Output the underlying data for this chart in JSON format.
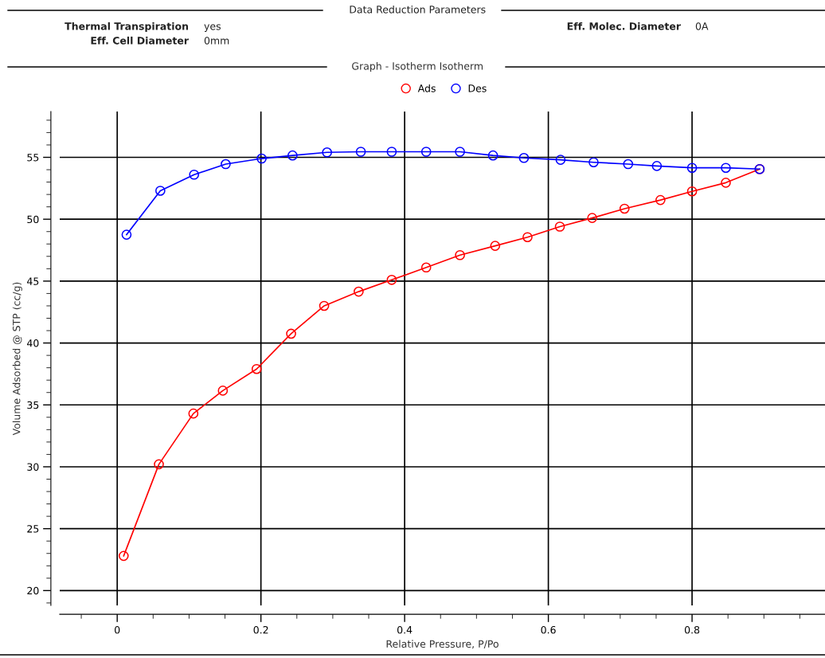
{
  "chart_data": {
    "type": "line",
    "title": "Graph - Isotherm Isotherm",
    "xlabel": "Relative Pressure, P/Po",
    "ylabel": "Volume Adsorbed @ STP (cc/g)",
    "annotations": [
      "Data Reduction Parameters",
      "Thermal Transpiration",
      "yes",
      "Eff. Cell Diameter",
      "0mm",
      "Eff. Molec. Diameter",
      "0A"
    ],
    "xlim": [
      -0.08,
      0.985
    ],
    "xticks": [
      0,
      0.2,
      0.4,
      0.6,
      0.8
    ],
    "ylim": [
      18.8,
      58.7
    ],
    "yticks": [
      20,
      25,
      30,
      35,
      40,
      45,
      50,
      55
    ],
    "grid": true,
    "legend": "top",
    "marker": "circle",
    "line_style": "solid",
    "series": [
      {
        "name": "Ads",
        "color": "#ff0000",
        "x": [
          0.009,
          0.058,
          0.106,
          0.147,
          0.194,
          0.242,
          0.288,
          0.336,
          0.382,
          0.43,
          0.477,
          0.526,
          0.571,
          0.616,
          0.661,
          0.706,
          0.756,
          0.8,
          0.847,
          0.894
        ],
        "values": [
          22.8,
          30.2,
          34.3,
          36.15,
          37.9,
          40.75,
          43.0,
          44.15,
          45.1,
          46.1,
          47.1,
          47.85,
          48.55,
          49.4,
          50.1,
          50.85,
          51.55,
          52.25,
          52.95,
          54.05
        ]
      },
      {
        "name": "Des",
        "color": "#0000ff",
        "x": [
          0.013,
          0.06,
          0.107,
          0.151,
          0.201,
          0.244,
          0.292,
          0.339,
          0.382,
          0.43,
          0.477,
          0.523,
          0.566,
          0.617,
          0.663,
          0.711,
          0.751,
          0.8,
          0.847,
          0.894
        ],
        "values": [
          48.75,
          52.3,
          53.6,
          54.45,
          54.9,
          55.15,
          55.4,
          55.45,
          55.45,
          55.45,
          55.45,
          55.15,
          54.95,
          54.8,
          54.6,
          54.45,
          54.3,
          54.15,
          54.15,
          54.05
        ]
      }
    ]
  }
}
